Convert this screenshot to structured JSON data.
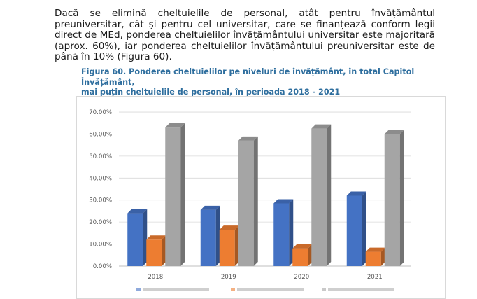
{
  "paragraph": "Dacă se elimină cheltuielile de personal, atât pentru învățământul preuniversitar, cât și pentru cel universitar, care se finanțează conform legii direct de MEd, ponderea cheltuielilor învățământului universitar este majoritară (aprox. 60%), iar ponderea cheltuielilor învățământului preuniversitar este de până în 10% (Figura 60).",
  "figure_title_line1": "Figura 60. Ponderea cheltuielilor pe niveluri de învățământ, în total Capitol Învățământ,",
  "figure_title_line2": "mai puțin cheltuielile de personal, în perioada 2018 - 2021",
  "colors": {
    "blue": "#4472c4",
    "orange": "#ed7d31",
    "gray": "#a5a5a5",
    "title": "#2e6e9e"
  },
  "chart_data": {
    "type": "bar",
    "categories": [
      "2018",
      "2019",
      "2020",
      "2021"
    ],
    "series": [
      {
        "values": [
          24.0,
          25.5,
          28.5,
          32.0
        ]
      },
      {
        "values": [
          12.0,
          16.5,
          8.0,
          6.5
        ]
      },
      {
        "values": [
          63.0,
          57.0,
          62.5,
          60.0
        ]
      }
    ],
    "y_ticks": [
      "0.00%",
      "10.00%",
      "20.00%",
      "30.00%",
      "40.00%",
      "50.00%",
      "60.00%",
      "70.00%"
    ],
    "ylim": [
      0,
      70
    ],
    "grid": true,
    "style": "3d-clustered-column",
    "legend_placement": "bottom"
  }
}
